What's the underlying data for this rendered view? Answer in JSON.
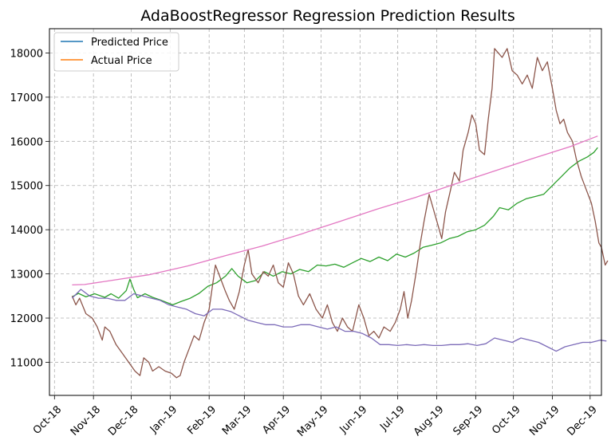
{
  "chart_data": {
    "type": "line",
    "title": "AdaBoostRegressor Regression Prediction Results",
    "xlabel": "",
    "ylabel": "",
    "x_ticks": [
      "Oct-18",
      "Nov-18",
      "Dec-18",
      "Jan-19",
      "Feb-19",
      "Mar-19",
      "Apr-19",
      "May-19",
      "Jun-19",
      "Jul-19",
      "Aug-19",
      "Sep-19",
      "Oct-19",
      "Nov-19",
      "Dec-19"
    ],
    "y_ticks": [
      "11000",
      "12000",
      "13000",
      "14000",
      "15000",
      "16000",
      "17000",
      "18000"
    ],
    "ylim": [
      10250,
      18550
    ],
    "xlim": [
      "2018-09-27",
      "2019-12-10"
    ],
    "grid": true,
    "grid_style": "dashed",
    "legend_position": "top-left",
    "legend": [
      {
        "label": "Predicted Price",
        "color": "#1f77b4"
      },
      {
        "label": "Actual Price",
        "color": "#ff7f0e"
      }
    ],
    "series": [
      {
        "color": "#2ca02c",
        "points": [
          [
            "2018-10-15",
            12480
          ],
          [
            "2018-10-20",
            12560
          ],
          [
            "2018-10-26",
            12480
          ],
          [
            "2018-11-02",
            12550
          ],
          [
            "2018-11-10",
            12470
          ],
          [
            "2018-11-15",
            12550
          ],
          [
            "2018-11-21",
            12450
          ],
          [
            "2018-11-27",
            12620
          ],
          [
            "2018-11-30",
            12880
          ],
          [
            "2018-12-03",
            12650
          ],
          [
            "2018-12-06",
            12460
          ],
          [
            "2018-12-12",
            12550
          ],
          [
            "2018-12-18",
            12470
          ],
          [
            "2018-12-25",
            12400
          ],
          [
            "2019-01-03",
            12300
          ],
          [
            "2019-01-10",
            12380
          ],
          [
            "2019-01-17",
            12450
          ],
          [
            "2019-01-24",
            12560
          ],
          [
            "2019-01-31",
            12720
          ],
          [
            "2019-02-07",
            12800
          ],
          [
            "2019-02-14",
            12950
          ],
          [
            "2019-02-19",
            13120
          ],
          [
            "2019-02-24",
            12950
          ],
          [
            "2019-03-03",
            12800
          ],
          [
            "2019-03-10",
            12850
          ],
          [
            "2019-03-17",
            13050
          ],
          [
            "2019-03-24",
            12950
          ],
          [
            "2019-03-31",
            13050
          ],
          [
            "2019-04-07",
            13000
          ],
          [
            "2019-04-14",
            13100
          ],
          [
            "2019-04-21",
            13050
          ],
          [
            "2019-04-28",
            13200
          ],
          [
            "2019-05-05",
            13180
          ],
          [
            "2019-05-12",
            13220
          ],
          [
            "2019-05-19",
            13150
          ],
          [
            "2019-05-26",
            13250
          ],
          [
            "2019-06-02",
            13350
          ],
          [
            "2019-06-09",
            13280
          ],
          [
            "2019-06-16",
            13380
          ],
          [
            "2019-06-23",
            13300
          ],
          [
            "2019-06-30",
            13450
          ],
          [
            "2019-07-07",
            13380
          ],
          [
            "2019-07-14",
            13470
          ],
          [
            "2019-07-21",
            13600
          ],
          [
            "2019-07-28",
            13650
          ],
          [
            "2019-08-04",
            13700
          ],
          [
            "2019-08-11",
            13800
          ],
          [
            "2019-08-18",
            13850
          ],
          [
            "2019-08-25",
            13950
          ],
          [
            "2019-09-01",
            14000
          ],
          [
            "2019-09-08",
            14100
          ],
          [
            "2019-09-15",
            14300
          ],
          [
            "2019-09-20",
            14500
          ],
          [
            "2019-09-27",
            14450
          ],
          [
            "2019-10-04",
            14600
          ],
          [
            "2019-10-11",
            14700
          ],
          [
            "2019-10-18",
            14750
          ],
          [
            "2019-10-25",
            14800
          ],
          [
            "2019-11-01",
            15000
          ],
          [
            "2019-11-08",
            15200
          ],
          [
            "2019-11-15",
            15400
          ],
          [
            "2019-11-22",
            15550
          ],
          [
            "2019-11-29",
            15650
          ],
          [
            "2019-12-04",
            15750
          ],
          [
            "2019-12-07",
            15860
          ]
        ]
      },
      {
        "color": "#8c564b",
        "points": [
          [
            "2018-10-15",
            12500
          ],
          [
            "2018-10-18",
            12300
          ],
          [
            "2018-10-21",
            12450
          ],
          [
            "2018-10-26",
            12100
          ],
          [
            "2018-10-31",
            12000
          ],
          [
            "2018-11-04",
            11800
          ],
          [
            "2018-11-08",
            11500
          ],
          [
            "2018-11-10",
            11800
          ],
          [
            "2018-11-14",
            11700
          ],
          [
            "2018-11-19",
            11400
          ],
          [
            "2018-11-24",
            11200
          ],
          [
            "2018-11-29",
            11000
          ],
          [
            "2018-12-04",
            10800
          ],
          [
            "2018-12-08",
            10700
          ],
          [
            "2018-12-11",
            11100
          ],
          [
            "2018-12-15",
            11000
          ],
          [
            "2018-12-18",
            10800
          ],
          [
            "2018-12-23",
            10900
          ],
          [
            "2018-12-28",
            10800
          ],
          [
            "2019-01-02",
            10750
          ],
          [
            "2019-01-06",
            10650
          ],
          [
            "2019-01-09",
            10700
          ],
          [
            "2019-01-12",
            11000
          ],
          [
            "2019-01-16",
            11300
          ],
          [
            "2019-01-20",
            11600
          ],
          [
            "2019-01-24",
            11500
          ],
          [
            "2019-01-28",
            11900
          ],
          [
            "2019-02-01",
            12200
          ],
          [
            "2019-02-04",
            12800
          ],
          [
            "2019-02-06",
            13200
          ],
          [
            "2019-02-10",
            12900
          ],
          [
            "2019-02-14",
            12600
          ],
          [
            "2019-02-17",
            12400
          ],
          [
            "2019-02-21",
            12200
          ],
          [
            "2019-02-25",
            12600
          ],
          [
            "2019-03-01",
            13200
          ],
          [
            "2019-03-04",
            13550
          ],
          [
            "2019-03-07",
            13000
          ],
          [
            "2019-03-12",
            12800
          ],
          [
            "2019-03-16",
            13050
          ],
          [
            "2019-03-20",
            12950
          ],
          [
            "2019-03-24",
            13200
          ],
          [
            "2019-03-28",
            12800
          ],
          [
            "2019-04-01",
            12700
          ],
          [
            "2019-04-05",
            13250
          ],
          [
            "2019-04-09",
            13000
          ],
          [
            "2019-04-13",
            12500
          ],
          [
            "2019-04-17",
            12300
          ],
          [
            "2019-04-22",
            12550
          ],
          [
            "2019-04-27",
            12200
          ],
          [
            "2019-05-02",
            12000
          ],
          [
            "2019-05-06",
            12300
          ],
          [
            "2019-05-10",
            11900
          ],
          [
            "2019-05-14",
            11700
          ],
          [
            "2019-05-18",
            12000
          ],
          [
            "2019-05-22",
            11800
          ],
          [
            "2019-05-26",
            11700
          ],
          [
            "2019-05-31",
            12300
          ],
          [
            "2019-06-04",
            12000
          ],
          [
            "2019-06-08",
            11600
          ],
          [
            "2019-06-12",
            11700
          ],
          [
            "2019-06-16",
            11550
          ],
          [
            "2019-06-20",
            11800
          ],
          [
            "2019-06-25",
            11700
          ],
          [
            "2019-06-29",
            11900
          ],
          [
            "2019-07-03",
            12200
          ],
          [
            "2019-07-06",
            12600
          ],
          [
            "2019-07-09",
            12000
          ],
          [
            "2019-07-12",
            12400
          ],
          [
            "2019-07-16",
            13100
          ],
          [
            "2019-07-19",
            13700
          ],
          [
            "2019-07-22",
            14200
          ],
          [
            "2019-07-26",
            14800
          ],
          [
            "2019-07-29",
            14500
          ],
          [
            "2019-08-02",
            14100
          ],
          [
            "2019-08-05",
            13800
          ],
          [
            "2019-08-08",
            14400
          ],
          [
            "2019-08-12",
            14900
          ],
          [
            "2019-08-15",
            15300
          ],
          [
            "2019-08-19",
            15100
          ],
          [
            "2019-08-22",
            15800
          ],
          [
            "2019-08-26",
            16200
          ],
          [
            "2019-08-29",
            16600
          ],
          [
            "2019-09-01",
            16400
          ],
          [
            "2019-09-04",
            15800
          ],
          [
            "2019-09-08",
            15700
          ],
          [
            "2019-09-11",
            16500
          ],
          [
            "2019-09-14",
            17200
          ],
          [
            "2019-09-16",
            18100
          ],
          [
            "2019-09-22",
            17900
          ],
          [
            "2019-09-26",
            18100
          ],
          [
            "2019-09-30",
            17600
          ],
          [
            "2019-10-04",
            17500
          ],
          [
            "2019-10-08",
            17300
          ],
          [
            "2019-10-12",
            17500
          ],
          [
            "2019-10-16",
            17200
          ],
          [
            "2019-10-20",
            17900
          ],
          [
            "2019-10-24",
            17600
          ],
          [
            "2019-10-28",
            17800
          ],
          [
            "2019-11-01",
            17200
          ],
          [
            "2019-11-04",
            16700
          ],
          [
            "2019-11-07",
            16400
          ],
          [
            "2019-11-10",
            16500
          ],
          [
            "2019-11-13",
            16200
          ],
          [
            "2019-11-17",
            16000
          ],
          [
            "2019-11-20",
            15600
          ],
          [
            "2019-11-24",
            15200
          ],
          [
            "2019-11-28",
            14900
          ],
          [
            "2019-12-02",
            14600
          ],
          [
            "2019-12-05",
            14200
          ],
          [
            "2019-12-08",
            13700
          ],
          [
            "2019-12-10",
            13600
          ],
          [
            "2019-12-13",
            13200
          ],
          [
            "2019-12-15",
            13300
          ]
        ]
      },
      {
        "color": "#7c6bb8",
        "points": [
          [
            "2018-10-15",
            12450
          ],
          [
            "2018-10-22",
            12650
          ],
          [
            "2018-10-29",
            12500
          ],
          [
            "2018-11-05",
            12450
          ],
          [
            "2018-11-12",
            12450
          ],
          [
            "2018-11-19",
            12400
          ],
          [
            "2018-11-26",
            12400
          ],
          [
            "2018-12-03",
            12550
          ],
          [
            "2018-12-10",
            12500
          ],
          [
            "2018-12-17",
            12450
          ],
          [
            "2018-12-24",
            12400
          ],
          [
            "2018-12-31",
            12300
          ],
          [
            "2019-01-07",
            12250
          ],
          [
            "2019-01-14",
            12200
          ],
          [
            "2019-01-21",
            12100
          ],
          [
            "2019-01-28",
            12050
          ],
          [
            "2019-02-04",
            12200
          ],
          [
            "2019-02-11",
            12200
          ],
          [
            "2019-02-18",
            12150
          ],
          [
            "2019-02-25",
            12050
          ],
          [
            "2019-03-04",
            11950
          ],
          [
            "2019-03-11",
            11900
          ],
          [
            "2019-03-18",
            11850
          ],
          [
            "2019-03-25",
            11850
          ],
          [
            "2019-04-01",
            11800
          ],
          [
            "2019-04-08",
            11800
          ],
          [
            "2019-04-15",
            11850
          ],
          [
            "2019-04-22",
            11850
          ],
          [
            "2019-04-29",
            11800
          ],
          [
            "2019-05-06",
            11750
          ],
          [
            "2019-05-13",
            11800
          ],
          [
            "2019-05-20",
            11700
          ],
          [
            "2019-05-27",
            11700
          ],
          [
            "2019-06-03",
            11650
          ],
          [
            "2019-06-10",
            11550
          ],
          [
            "2019-06-17",
            11400
          ],
          [
            "2019-06-24",
            11400
          ],
          [
            "2019-07-01",
            11380
          ],
          [
            "2019-07-08",
            11400
          ],
          [
            "2019-07-15",
            11380
          ],
          [
            "2019-07-22",
            11400
          ],
          [
            "2019-07-29",
            11380
          ],
          [
            "2019-08-05",
            11380
          ],
          [
            "2019-08-12",
            11400
          ],
          [
            "2019-08-19",
            11400
          ],
          [
            "2019-08-26",
            11420
          ],
          [
            "2019-09-02",
            11380
          ],
          [
            "2019-09-09",
            11420
          ],
          [
            "2019-09-16",
            11550
          ],
          [
            "2019-09-23",
            11500
          ],
          [
            "2019-09-30",
            11450
          ],
          [
            "2019-10-07",
            11550
          ],
          [
            "2019-10-14",
            11500
          ],
          [
            "2019-10-21",
            11450
          ],
          [
            "2019-10-28",
            11350
          ],
          [
            "2019-11-04",
            11250
          ],
          [
            "2019-11-11",
            11350
          ],
          [
            "2019-11-18",
            11400
          ],
          [
            "2019-11-25",
            11450
          ],
          [
            "2019-12-02",
            11450
          ],
          [
            "2019-12-09",
            11500
          ],
          [
            "2019-12-14",
            11480
          ]
        ]
      },
      {
        "color": "#e377c2",
        "points": [
          [
            "2018-10-15",
            12750
          ],
          [
            "2018-10-25",
            12760
          ],
          [
            "2018-11-15",
            12850
          ],
          [
            "2018-12-15",
            12980
          ],
          [
            "2019-01-15",
            13180
          ],
          [
            "2019-02-15",
            13420
          ],
          [
            "2019-03-15",
            13630
          ],
          [
            "2019-04-15",
            13900
          ],
          [
            "2019-05-15",
            14180
          ],
          [
            "2019-06-15",
            14470
          ],
          [
            "2019-07-15",
            14730
          ],
          [
            "2019-08-15",
            15030
          ],
          [
            "2019-09-15",
            15320
          ],
          [
            "2019-10-15",
            15600
          ],
          [
            "2019-11-15",
            15880
          ],
          [
            "2019-12-07",
            16120
          ]
        ]
      }
    ]
  }
}
